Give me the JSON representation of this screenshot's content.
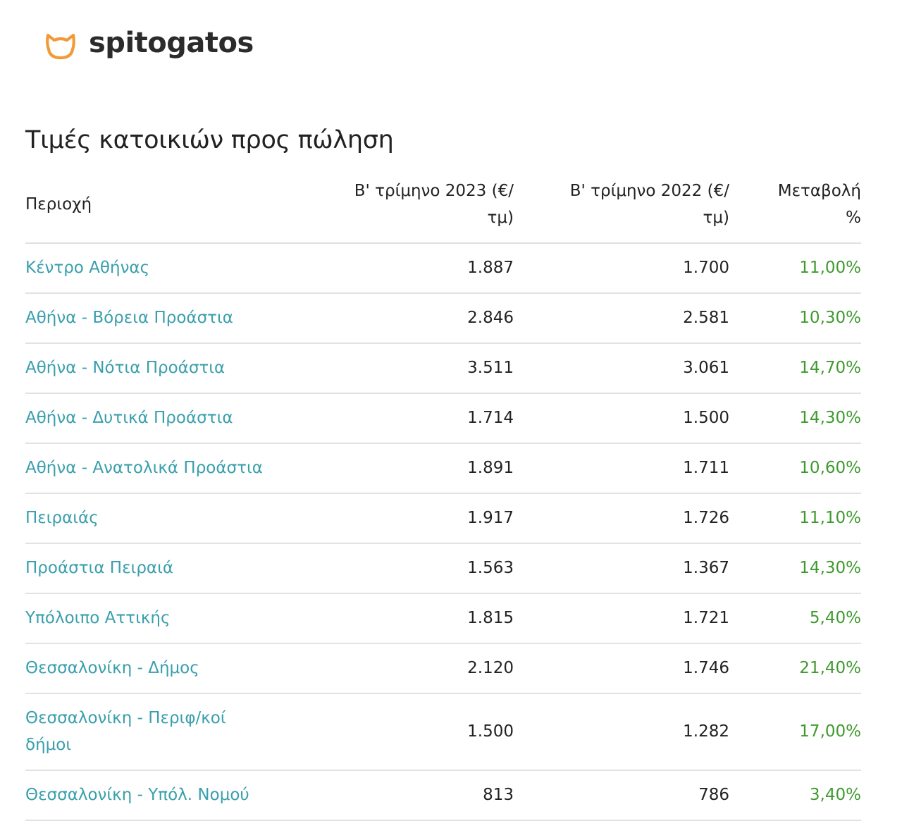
{
  "brand": {
    "name": "spitogatos",
    "logo_icon": "cat-head-icon",
    "accent_color": "#f29a38"
  },
  "page": {
    "title": "Τιμές κατοικιών προς πώληση"
  },
  "table": {
    "headers": {
      "area": "Περιοχή",
      "q2_2023": "Β' τρίμηνο 2023 (€/τμ)",
      "q2_2022": "Β' τρίμηνο 2022 (€/τμ)",
      "change": "Μεταβολή %"
    },
    "rows": [
      {
        "area": "Κέντρο Αθήνας",
        "q2_2023": "1.887",
        "q2_2022": "1.700",
        "change": "11,00%"
      },
      {
        "area": "Αθήνα - Βόρεια Προάστια",
        "q2_2023": "2.846",
        "q2_2022": "2.581",
        "change": "10,30%"
      },
      {
        "area": "Αθήνα - Νότια Προάστια",
        "q2_2023": "3.511",
        "q2_2022": "3.061",
        "change": "14,70%"
      },
      {
        "area": "Αθήνα - Δυτικά Προάστια",
        "q2_2023": "1.714",
        "q2_2022": "1.500",
        "change": "14,30%"
      },
      {
        "area": "Αθήνα - Ανατολικά Προάστια",
        "q2_2023": "1.891",
        "q2_2022": "1.711",
        "change": "10,60%"
      },
      {
        "area": "Πειραιάς",
        "q2_2023": "1.917",
        "q2_2022": "1.726",
        "change": "11,10%"
      },
      {
        "area": "Προάστια Πειραιά",
        "q2_2023": "1.563",
        "q2_2022": "1.367",
        "change": "14,30%"
      },
      {
        "area": "Υπόλοιπο Αττικής",
        "q2_2023": "1.815",
        "q2_2022": "1.721",
        "change": "5,40%"
      },
      {
        "area": "Θεσσαλονίκη - Δήμος",
        "q2_2023": "2.120",
        "q2_2022": "1.746",
        "change": "21,40%"
      },
      {
        "area": "Θεσσαλονίκη - Περιφ/κοί δήμοι",
        "q2_2023": "1.500",
        "q2_2022": "1.282",
        "change": "17,00%"
      },
      {
        "area": "Θεσσαλονίκη - Υπόλ. Νομού",
        "q2_2023": "813",
        "q2_2022": "786",
        "change": "3,40%"
      }
    ]
  },
  "colors": {
    "link": "#3a9fad",
    "positive_change": "#3f9a2e",
    "text": "#222222",
    "divider": "#e2e2e2"
  }
}
